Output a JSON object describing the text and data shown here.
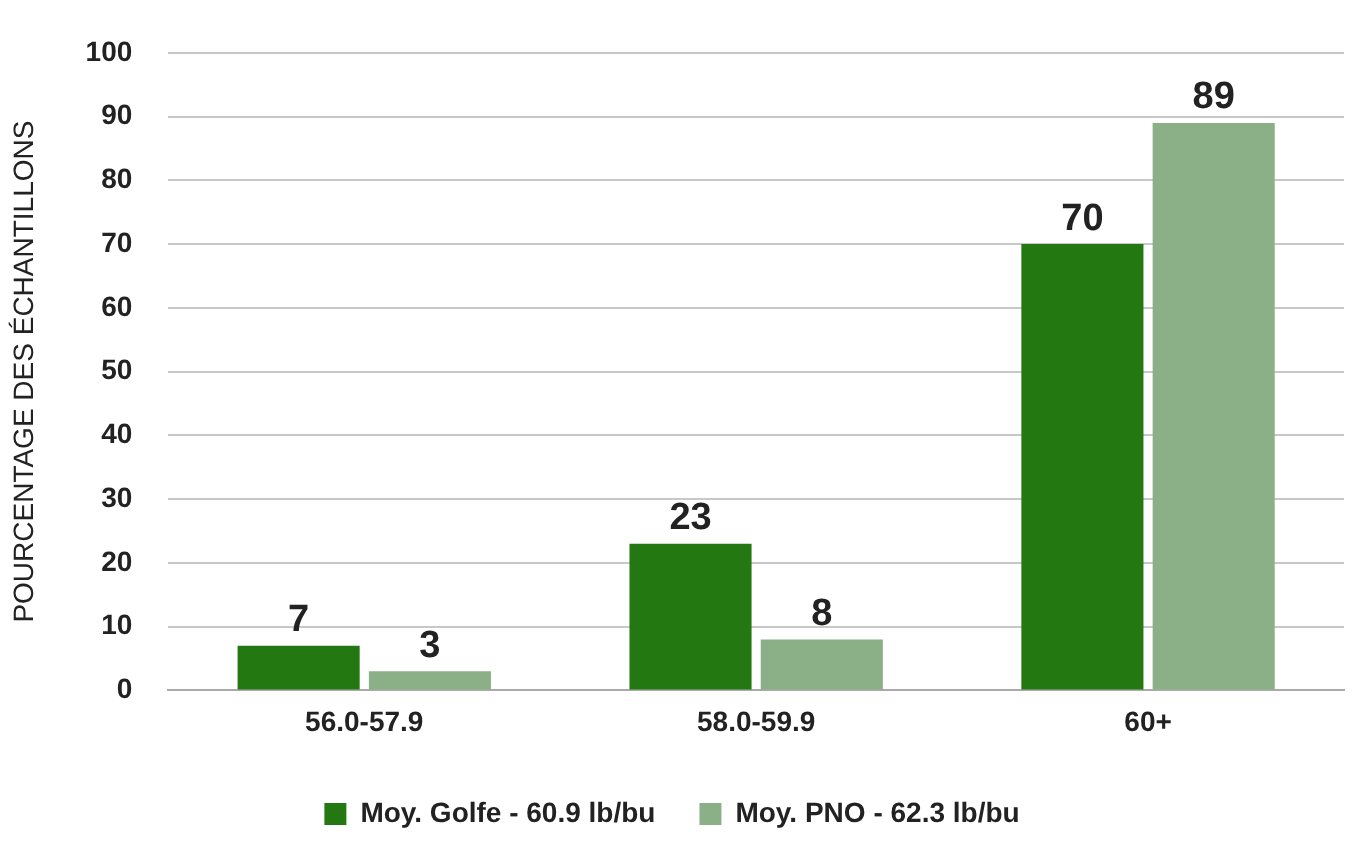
{
  "chart_data": {
    "type": "bar",
    "ylabel": "POURCENTAGE DES ÉCHANTILLONS",
    "categories": [
      "56.0-57.9",
      "58.0-59.9",
      "60+"
    ],
    "series": [
      {
        "name": "Moy. Golfe - 60.9 lb/bu",
        "color": "#237812",
        "values": [
          7,
          23,
          70
        ]
      },
      {
        "name": "Moy. PNO - 62.3 lb/bu",
        "color": "#8bb087",
        "values": [
          3,
          8,
          89
        ]
      }
    ],
    "ylim": [
      0,
      100
    ],
    "yticks": [
      0,
      10,
      20,
      30,
      40,
      50,
      60,
      70,
      80,
      90,
      100
    ],
    "grid": "y",
    "legend": "bottom",
    "data_labels": true
  }
}
